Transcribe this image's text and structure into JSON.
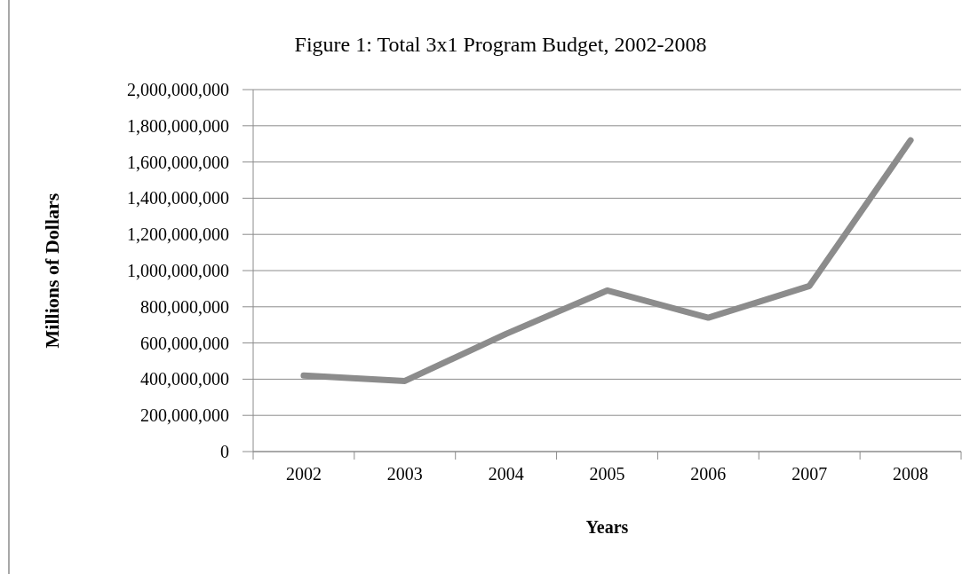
{
  "chart_data": {
    "type": "line",
    "title": "Figure 1: Total 3x1 Program Budget, 2002-2008",
    "xlabel": "Years",
    "ylabel": "Millions of Dollars",
    "categories": [
      "2002",
      "2003",
      "2004",
      "2005",
      "2006",
      "2007",
      "2008"
    ],
    "series": [
      {
        "color": "#8c8c8c",
        "values": [
          420000000,
          390000000,
          650000000,
          890000000,
          740000000,
          915000000,
          1720000000
        ]
      }
    ],
    "ylim": [
      0,
      2000000000
    ],
    "yticks": [
      {
        "value": 0,
        "label": "0"
      },
      {
        "value": 200000000,
        "label": "200,000,000"
      },
      {
        "value": 400000000,
        "label": "400,000,000"
      },
      {
        "value": 600000000,
        "label": "600,000,000"
      },
      {
        "value": 800000000,
        "label": "800,000,000"
      },
      {
        "value": 1000000000,
        "label": "1,000,000,000"
      },
      {
        "value": 1200000000,
        "label": "1,200,000,000"
      },
      {
        "value": 1400000000,
        "label": "1,400,000,000"
      },
      {
        "value": 1600000000,
        "label": "1,600,000,000"
      },
      {
        "value": 1800000000,
        "label": "1,800,000,000"
      },
      {
        "value": 2000000000,
        "label": "2,000,000,000"
      }
    ],
    "grid": "y",
    "marker": "none",
    "line_style": "solid"
  }
}
